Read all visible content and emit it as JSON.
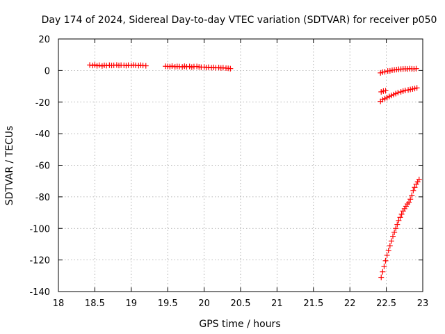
{
  "chart_data": {
    "type": "scatter",
    "title": "Day 174 of 2024, Sidereal Day-to-day VTEC variation (SDTVAR) for receiver p050",
    "xlabel": "GPS time / hours",
    "ylabel": "SDTVAR / TECUs",
    "xlim": [
      18,
      23
    ],
    "ylim": [
      -140,
      20
    ],
    "xticks": [
      "18",
      "18.5",
      "19",
      "19.5",
      "20",
      "20.5",
      "21",
      "21.5",
      "22",
      "22.5",
      "23"
    ],
    "yticks": [
      "20",
      "0",
      "-20",
      "-40",
      "-60",
      "-80",
      "-100",
      "-120",
      "-140"
    ],
    "grid": true,
    "legend": "none",
    "marker": "plus",
    "series_color": "#ff0000",
    "segments": [
      {
        "points": [
          [
            18.43,
            3.5
          ],
          [
            18.47,
            3.2
          ],
          [
            18.5,
            3.6
          ],
          [
            18.53,
            3.0
          ],
          [
            18.56,
            3.4
          ],
          [
            18.6,
            2.9
          ],
          [
            18.63,
            3.3
          ],
          [
            18.66,
            3.1
          ],
          [
            18.7,
            3.4
          ],
          [
            18.73,
            3.2
          ],
          [
            18.76,
            3.3
          ],
          [
            18.8,
            3.5
          ],
          [
            18.83,
            3.2
          ],
          [
            18.86,
            3.4
          ],
          [
            18.9,
            3.3
          ],
          [
            18.93,
            3.1
          ],
          [
            18.96,
            3.4
          ],
          [
            19.0,
            3.2
          ],
          [
            19.03,
            3.5
          ],
          [
            19.06,
            3.3
          ],
          [
            19.1,
            3.1
          ],
          [
            19.13,
            3.4
          ],
          [
            19.16,
            3.2
          ],
          [
            19.2,
            3.0
          ]
        ]
      },
      {
        "points": [
          [
            19.47,
            2.7
          ],
          [
            19.5,
            2.6
          ],
          [
            19.53,
            2.5
          ],
          [
            19.56,
            2.8
          ],
          [
            19.6,
            2.4
          ],
          [
            19.63,
            2.6
          ],
          [
            19.66,
            2.5
          ],
          [
            19.7,
            2.3
          ],
          [
            19.73,
            2.7
          ],
          [
            19.76,
            2.4
          ],
          [
            19.8,
            2.6
          ],
          [
            19.83,
            2.2
          ],
          [
            19.86,
            2.5
          ],
          [
            19.9,
            2.6
          ],
          [
            19.93,
            2.3
          ],
          [
            19.96,
            2.1
          ],
          [
            20.0,
            2.2
          ],
          [
            20.03,
            1.9
          ],
          [
            20.06,
            2.1
          ],
          [
            20.1,
            1.8
          ],
          [
            20.13,
            2.0
          ],
          [
            20.16,
            1.7
          ],
          [
            20.2,
            1.9
          ],
          [
            20.23,
            1.6
          ],
          [
            20.26,
            1.8
          ],
          [
            20.3,
            1.5
          ],
          [
            20.33,
            1.4
          ],
          [
            20.36,
            1.2
          ]
        ]
      },
      {
        "points": [
          [
            22.42,
            -1.5
          ],
          [
            22.45,
            -1.0
          ],
          [
            22.48,
            -0.8
          ],
          [
            22.52,
            -0.3
          ],
          [
            22.55,
            -0.2
          ],
          [
            22.58,
            0.2
          ],
          [
            22.61,
            0.4
          ],
          [
            22.64,
            0.6
          ],
          [
            22.67,
            0.8
          ],
          [
            22.7,
            0.9
          ],
          [
            22.73,
            1.0
          ],
          [
            22.76,
            1.1
          ],
          [
            22.79,
            1.0
          ],
          [
            22.82,
            1.2
          ],
          [
            22.85,
            1.1
          ],
          [
            22.88,
            1.0
          ],
          [
            22.91,
            1.2
          ]
        ]
      },
      {
        "points": [
          [
            22.43,
            -13.5
          ],
          [
            22.46,
            -13.0
          ],
          [
            22.49,
            -12.8
          ]
        ]
      },
      {
        "points": [
          [
            22.42,
            -19.5
          ],
          [
            22.45,
            -18.5
          ],
          [
            22.48,
            -17.8
          ],
          [
            22.51,
            -17.2
          ],
          [
            22.54,
            -16.4
          ],
          [
            22.57,
            -15.8
          ],
          [
            22.6,
            -15.2
          ],
          [
            22.63,
            -14.6
          ],
          [
            22.66,
            -14.0
          ],
          [
            22.7,
            -13.5
          ],
          [
            22.73,
            -13.0
          ],
          [
            22.76,
            -12.6
          ],
          [
            22.8,
            -12.3
          ],
          [
            22.83,
            -12.0
          ],
          [
            22.86,
            -11.7
          ],
          [
            22.89,
            -11.4
          ],
          [
            22.92,
            -11.0
          ]
        ]
      },
      {
        "points": [
          [
            22.43,
            -131
          ],
          [
            22.45,
            -127.5
          ],
          [
            22.47,
            -124
          ],
          [
            22.49,
            -120.5
          ],
          [
            22.51,
            -117
          ],
          [
            22.53,
            -114
          ],
          [
            22.55,
            -111
          ],
          [
            22.57,
            -108
          ],
          [
            22.59,
            -105
          ],
          [
            22.61,
            -102.5
          ],
          [
            22.63,
            -100
          ],
          [
            22.65,
            -97.5
          ],
          [
            22.67,
            -95
          ],
          [
            22.69,
            -93
          ],
          [
            22.71,
            -91
          ],
          [
            22.73,
            -89
          ],
          [
            22.75,
            -87.5
          ],
          [
            22.77,
            -86
          ],
          [
            22.79,
            -84.5
          ],
          [
            22.81,
            -83.5
          ],
          [
            22.83,
            -81.5
          ],
          [
            22.85,
            -79
          ],
          [
            22.87,
            -76
          ],
          [
            22.89,
            -74
          ],
          [
            22.91,
            -72
          ],
          [
            22.93,
            -70.5
          ],
          [
            22.95,
            -69
          ]
        ]
      }
    ]
  }
}
